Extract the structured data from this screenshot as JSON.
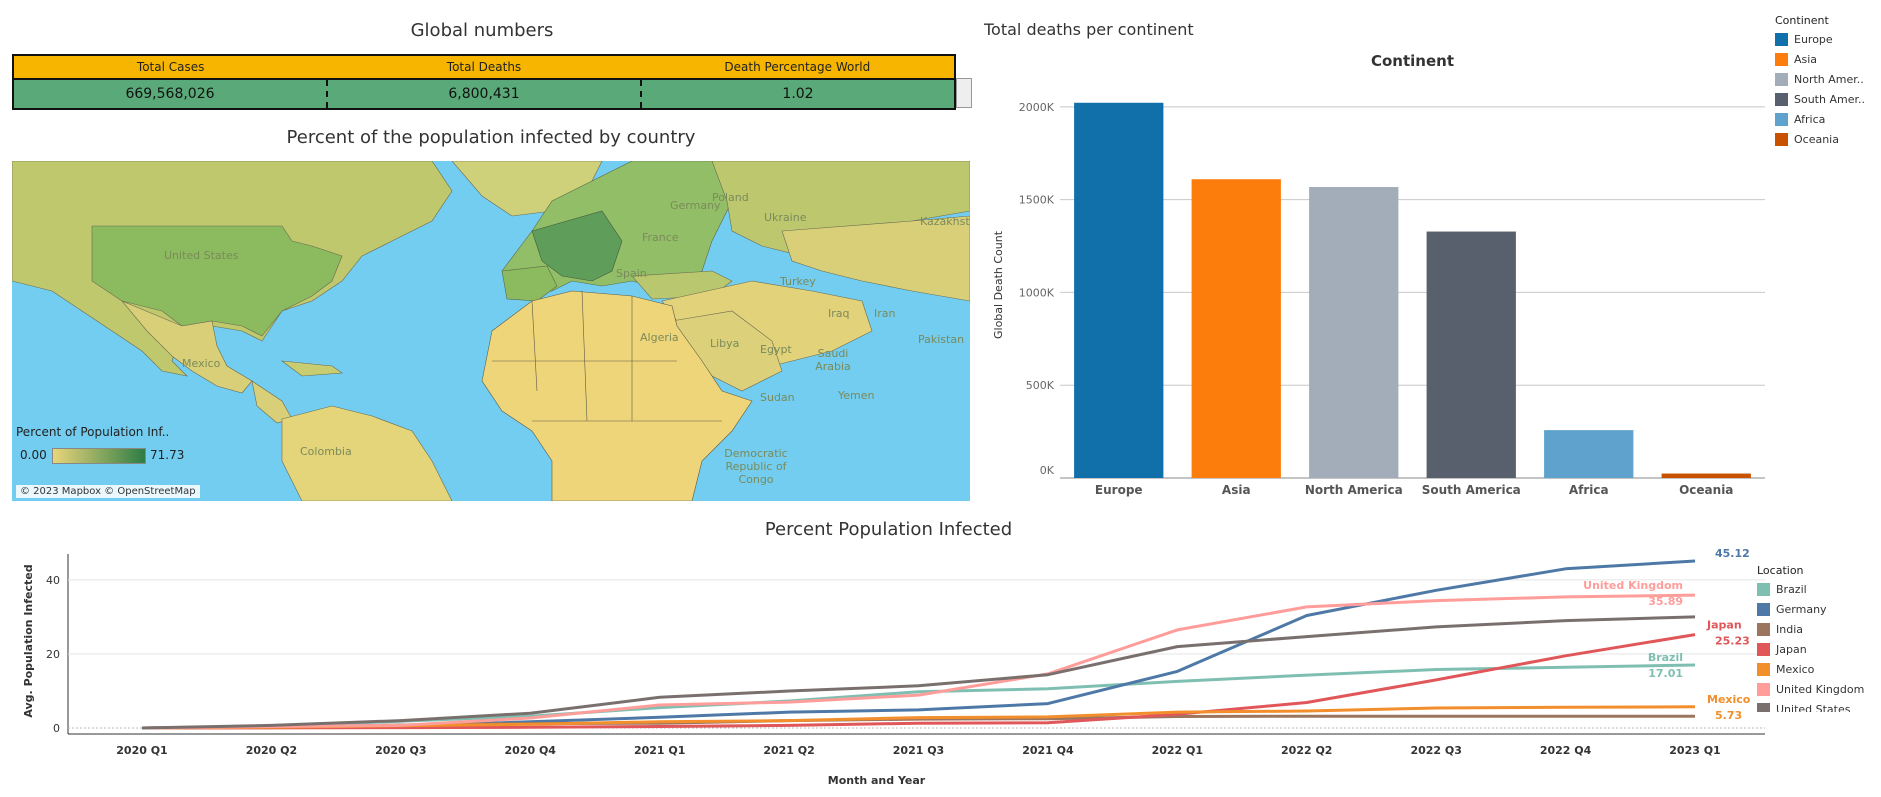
{
  "global_numbers": {
    "title": "Global numbers",
    "headers": [
      "Total Cases",
      "Total Deaths",
      "Death Percentage World"
    ],
    "values": [
      "669,568,026",
      "6,800,431",
      "1.02"
    ]
  },
  "map": {
    "title": "Percent of the population infected by country",
    "legend_title": "Percent of Population Inf..",
    "legend_min": "0.00",
    "legend_max": "71.73",
    "attribution": "© 2023 Mapbox © OpenStreetMap",
    "labels": [
      "United States",
      "Mexico",
      "Colombia",
      "Spain",
      "France",
      "Germany",
      "Poland",
      "Ukraine",
      "Turkey",
      "Iraq",
      "Iran",
      "Kazakhstan",
      "Algeria",
      "Libya",
      "Egypt",
      "Saudi Arabia",
      "Sudan",
      "Yemen",
      "Democratic Republic of Congo",
      "Pakistan"
    ],
    "colors": {
      "ocean": "#72cdf0",
      "low": "#e9d57a",
      "high": "#2e7d46"
    }
  },
  "continent_panel": {
    "title": "Total deaths per continent",
    "legend_title": "Continent",
    "legend_items": [
      "Europe",
      "Asia",
      "North Amer..",
      "South Amer..",
      "Africa",
      "Oceania"
    ]
  },
  "line_panel": {
    "title": "Percent Population Infected",
    "legend_title": "Location",
    "legend_items": [
      "Brazil",
      "Germany",
      "India",
      "Japan",
      "Mexico",
      "United Kingdom",
      "United States"
    ]
  },
  "chart_data": [
    {
      "type": "bar",
      "title": "Continent",
      "xlabel": "",
      "ylabel": "Global Death Count",
      "categories": [
        "Europe",
        "Asia",
        "North America",
        "South America",
        "Africa",
        "Oceania"
      ],
      "values": [
        2022000,
        1610000,
        1568000,
        1328000,
        258000,
        24000
      ],
      "colors": [
        "#1170aa",
        "#fc7d0b",
        "#a3acb9",
        "#57606c",
        "#5fa2ce",
        "#c85200"
      ],
      "ylim": [
        0,
        2000000
      ],
      "yticks": [
        0,
        500000,
        1000000,
        1500000,
        2000000
      ],
      "ytick_labels": [
        "0K",
        "500K",
        "1000K",
        "1500K",
        "2000K"
      ],
      "grid": true
    },
    {
      "type": "line",
      "title": "Percent Population Infected",
      "xlabel": "Month and Year",
      "ylabel": "Avg. Population Infected",
      "categories": [
        "2020 Q1",
        "2020 Q2",
        "2020 Q3",
        "2020 Q4",
        "2021 Q1",
        "2021 Q2",
        "2021 Q3",
        "2021 Q4",
        "2022 Q1",
        "2022 Q2",
        "2022 Q3",
        "2022 Q4",
        "2023 Q1"
      ],
      "ylim": [
        0,
        47
      ],
      "yticks": [
        0,
        20,
        40
      ],
      "series": [
        {
          "name": "Brazil",
          "color": "#7fbfb1",
          "label": "17.01",
          "values": [
            0.0,
            0.5,
            1.8,
            3.2,
            5.5,
            7.3,
            9.8,
            10.6,
            12.6,
            14.3,
            15.8,
            16.4,
            17.01
          ]
        },
        {
          "name": "Germany",
          "color": "#4e79a7",
          "label": "45.12",
          "values": [
            0.0,
            0.2,
            0.4,
            1.7,
            2.9,
            4.3,
            4.9,
            6.6,
            15.3,
            30.4,
            37.2,
            43.0,
            45.12
          ]
        },
        {
          "name": "India",
          "color": "#9c755f",
          "label": "",
          "values": [
            0.0,
            0.1,
            0.8,
            1.2,
            1.3,
            2.0,
            2.4,
            2.5,
            3.1,
            3.2,
            3.2,
            3.2,
            3.2
          ]
        },
        {
          "name": "Japan",
          "color": "#e15759",
          "label": "25.23",
          "values": [
            0.0,
            0.02,
            0.1,
            0.2,
            0.4,
            0.7,
            1.3,
            1.4,
            3.7,
            6.9,
            13.0,
            19.5,
            25.23
          ]
        },
        {
          "name": "Mexico",
          "color": "#f28e2b",
          "label": "5.73",
          "values": [
            0.0,
            0.2,
            0.6,
            1.0,
            1.7,
            2.0,
            2.8,
            3.0,
            4.3,
            4.6,
            5.4,
            5.6,
            5.73
          ]
        },
        {
          "name": "United Kingdom",
          "color": "#ff9d9a",
          "label": "35.89",
          "values": [
            0.0,
            0.4,
            0.7,
            2.7,
            6.2,
            7.0,
            8.9,
            14.6,
            26.5,
            32.7,
            34.4,
            35.4,
            35.89
          ]
        },
        {
          "name": "United States",
          "color": "#79706e",
          "label": "",
          "values": [
            0.0,
            0.7,
            2.0,
            4.0,
            8.3,
            10.0,
            11.4,
            14.4,
            22.0,
            24.7,
            27.3,
            29.0,
            30.0
          ]
        }
      ],
      "grid": true
    }
  ]
}
